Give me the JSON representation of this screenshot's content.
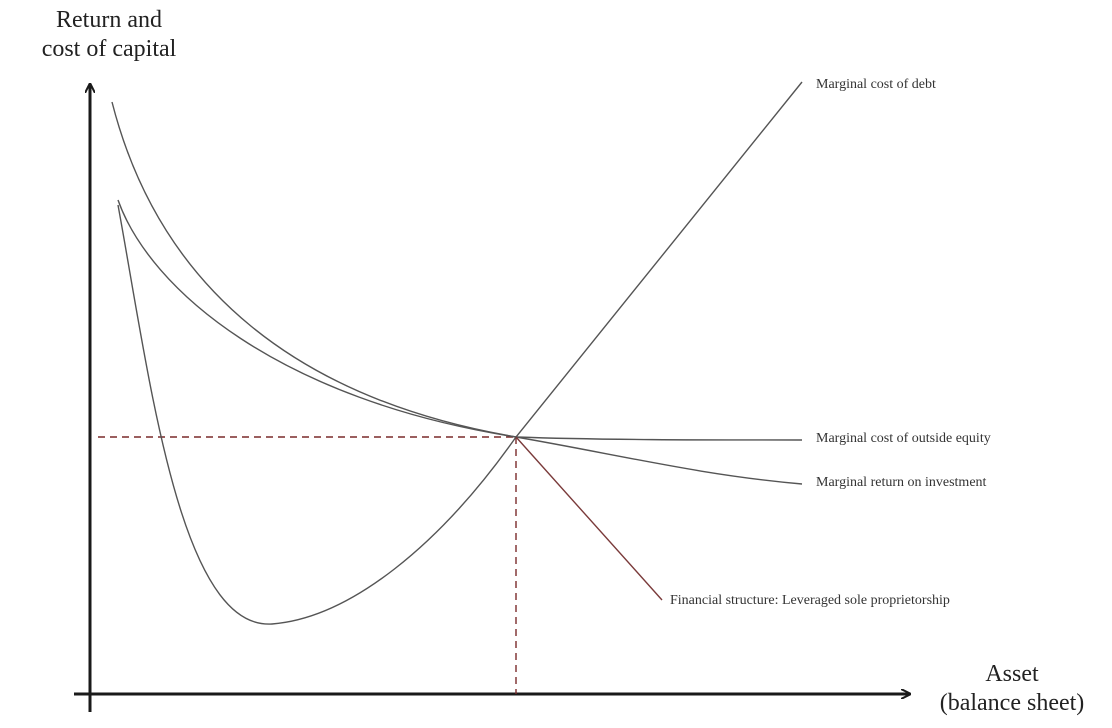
{
  "diagram": {
    "y_axis_title": [
      "Return and",
      "cost of capital"
    ],
    "x_axis_title": [
      "Asset",
      "(balance sheet)"
    ],
    "curves": {
      "marginal_cost_of_debt": "Marginal cost of debt",
      "marginal_cost_of_outside_equity": "Marginal cost of outside equity",
      "marginal_return_on_investment": "Marginal return on investment",
      "financial_structure": "Financial structure: Leveraged sole proprietorship"
    },
    "colors": {
      "axis": "#1a1a1a",
      "curve": "#555555",
      "guide": "#7a2a2a",
      "structure_line": "#7a3a3a"
    }
  }
}
